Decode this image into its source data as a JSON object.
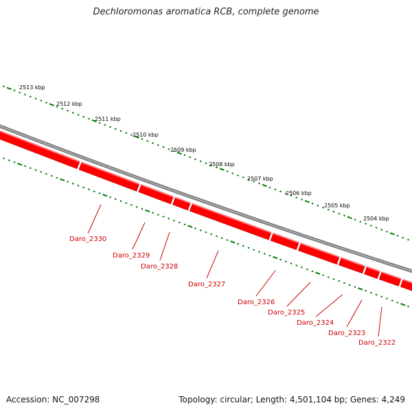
{
  "title": "Dechloromonas aromatica RCB, complete genome",
  "footer": {
    "accession": "Accession: NC_007298",
    "summary": "Topology: circular; Length: 4,501,104 bp; Genes: 4,249"
  },
  "colors": {
    "gene": "#ff0000",
    "backbone": "#808080",
    "ticks": "#007700",
    "label": "#cc0000"
  },
  "kbp_labels": [
    "2513 kbp",
    "2512 kbp",
    "2511 kbp",
    "2510 kbp",
    "2509 kbp",
    "2508 kbp",
    "2507 kbp",
    "2506 kbp",
    "2505 kbp",
    "2504 kbp"
  ],
  "genes": [
    "Daro_2330",
    "Daro_2329",
    "Daro_2328",
    "Daro_2327",
    "Daro_2326",
    "Daro_2325",
    "Daro_2324",
    "Daro_2323",
    "Daro_2322"
  ]
}
